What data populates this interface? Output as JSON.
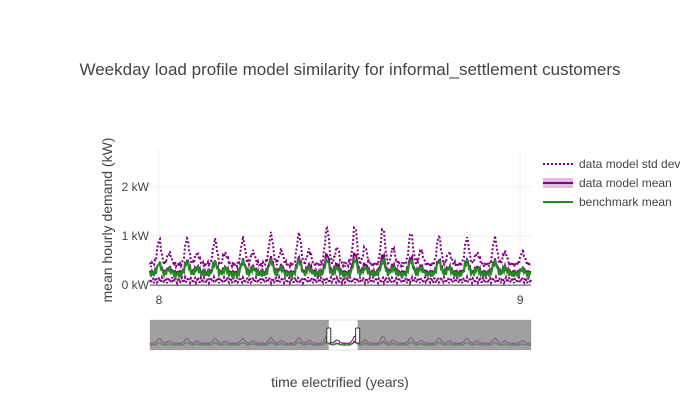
{
  "chart_data": {
    "type": "line",
    "title": "Weekday load profile model similarity for informal_settlement customers",
    "xlabel": "time electrified (years)",
    "ylabel": "mean hourly demand (kW)",
    "xlim": [
      7.975,
      9.03
    ],
    "ylim": [
      -0.1,
      2.75
    ],
    "x_ticks": [
      {
        "value": 8,
        "label": "8"
      },
      {
        "value": 9,
        "label": "9"
      }
    ],
    "y_ticks": [
      {
        "value": 0,
        "label": "0 kW"
      },
      {
        "value": 1,
        "label": "1 kW"
      },
      {
        "value": 2,
        "label": "2 kW"
      }
    ],
    "grid": true,
    "legend_position": "top-right",
    "range_slider": {
      "visible": true,
      "selected": [
        8.47,
        8.55
      ]
    },
    "series": [
      {
        "name": "data model std dev",
        "style": "dotted",
        "color": "#800080",
        "x": [
          7.975,
          8.0,
          8.085,
          8.16,
          8.24,
          8.32,
          8.4,
          8.48,
          8.56,
          8.64,
          8.72,
          8.8,
          8.88,
          8.96,
          9.03
        ],
        "values": [
          0.5,
          0.95,
          0.95,
          0.92,
          0.95,
          1.05,
          1.05,
          1.2,
          1.2,
          1.15,
          1.05,
          0.97,
          0.95,
          0.97,
          0.55
        ]
      },
      {
        "name": "data model mean",
        "style": "solid",
        "color": "#800080",
        "x": [
          7.975,
          8.0,
          8.085,
          8.16,
          8.24,
          8.32,
          8.4,
          8.48,
          8.56,
          8.64,
          8.72,
          8.8,
          8.88,
          8.96,
          9.03
        ],
        "values": [
          0.25,
          0.45,
          0.5,
          0.47,
          0.5,
          0.55,
          0.55,
          0.65,
          0.65,
          0.6,
          0.55,
          0.5,
          0.5,
          0.5,
          0.25
        ]
      },
      {
        "name": "benchmark mean",
        "style": "solid",
        "color": "#228b22",
        "x": [
          7.975,
          8.0,
          8.085,
          8.16,
          8.24,
          8.32,
          8.4,
          8.48,
          8.56,
          8.64,
          8.72,
          8.8,
          8.88,
          8.96,
          9.03
        ],
        "values": [
          0.25,
          0.45,
          0.47,
          0.46,
          0.48,
          0.5,
          0.5,
          0.52,
          0.52,
          0.5,
          0.5,
          0.48,
          0.47,
          0.47,
          0.25
        ]
      }
    ]
  }
}
